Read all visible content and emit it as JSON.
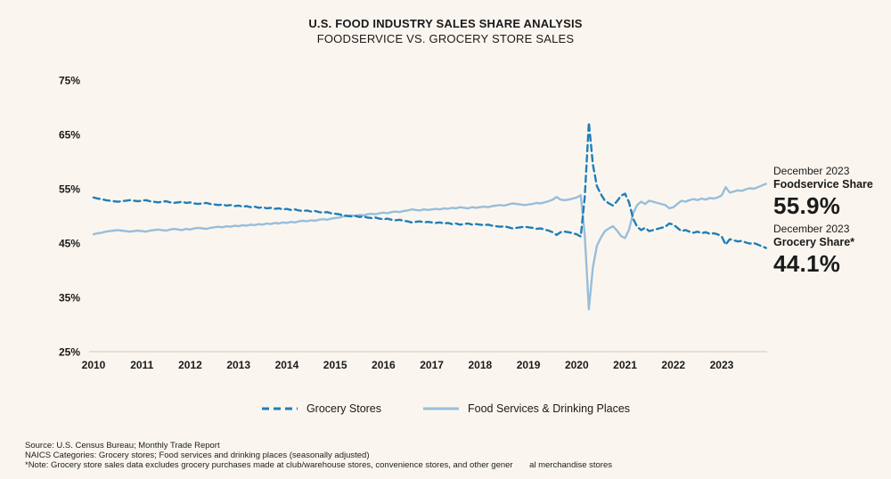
{
  "header": {
    "title": "U.S. FOOD INDUSTRY SALES SHARE ANALYSIS",
    "subtitle": "FOODSERVICE VS. GROCERY STORE SALES"
  },
  "chart_data": {
    "type": "line",
    "title": "U.S. Food Industry Sales Share Analysis",
    "x_unit": "monthly, Jan 2010 - Dec 2023",
    "x_tick_labels": [
      "2010",
      "2011",
      "2012",
      "2013",
      "2014",
      "2015",
      "2016",
      "2017",
      "2018",
      "2019",
      "2020",
      "2021",
      "2022",
      "2023"
    ],
    "y_tick_labels": [
      "25%",
      "35%",
      "45%",
      "55%",
      "65%",
      "75%"
    ],
    "ylim": [
      25,
      75
    ],
    "grid": false,
    "legend_position": "bottom",
    "series": [
      {
        "name": "Grocery Stores",
        "style": "dashed",
        "color": "#1f7fb8",
        "values": [
          53.4,
          53.2,
          53.1,
          52.9,
          52.8,
          52.7,
          52.6,
          52.7,
          52.8,
          52.9,
          52.8,
          52.7,
          52.8,
          52.9,
          52.7,
          52.6,
          52.5,
          52.6,
          52.7,
          52.5,
          52.4,
          52.5,
          52.6,
          52.4,
          52.5,
          52.3,
          52.2,
          52.3,
          52.4,
          52.2,
          52.1,
          52.0,
          52.1,
          51.9,
          52.0,
          51.8,
          51.9,
          51.7,
          51.8,
          51.6,
          51.7,
          51.5,
          51.6,
          51.4,
          51.5,
          51.3,
          51.4,
          51.2,
          51.3,
          51.1,
          51.2,
          51.0,
          50.9,
          51.0,
          50.8,
          50.9,
          50.7,
          50.6,
          50.7,
          50.5,
          50.4,
          50.3,
          50.1,
          50.0,
          49.9,
          50.0,
          49.8,
          49.9,
          49.7,
          49.6,
          49.7,
          49.5,
          49.4,
          49.5,
          49.3,
          49.2,
          49.3,
          49.1,
          49.0,
          48.8,
          48.9,
          49.0,
          48.8,
          48.9,
          48.8,
          48.7,
          48.8,
          48.6,
          48.7,
          48.5,
          48.6,
          48.4,
          48.5,
          48.6,
          48.4,
          48.5,
          48.4,
          48.3,
          48.4,
          48.2,
          48.1,
          48.0,
          48.1,
          47.9,
          47.7,
          47.8,
          47.9,
          48.0,
          47.9,
          47.8,
          47.6,
          47.7,
          47.5,
          47.3,
          47.0,
          46.5,
          47.0,
          47.1,
          47.0,
          46.8,
          46.6,
          46.2,
          53.5,
          67.2,
          59.5,
          55.5,
          54.0,
          52.8,
          52.3,
          51.9,
          52.7,
          53.7,
          54.1,
          52.5,
          49.5,
          48.0,
          47.4,
          47.8,
          47.2,
          47.4,
          47.6,
          47.8,
          48.0,
          48.6,
          48.4,
          47.8,
          47.2,
          47.4,
          47.1,
          46.9,
          47.1,
          46.8,
          47.0,
          46.7,
          46.8,
          46.6,
          46.2,
          44.7,
          45.7,
          45.5,
          45.3,
          45.4,
          45.1,
          44.9,
          45.0,
          44.7,
          44.4,
          44.1
        ]
      },
      {
        "name": "Food Services & Drinking Places",
        "style": "solid",
        "color": "#98bedb",
        "values": [
          46.6,
          46.8,
          46.9,
          47.1,
          47.2,
          47.3,
          47.4,
          47.3,
          47.2,
          47.1,
          47.2,
          47.3,
          47.2,
          47.1,
          47.3,
          47.4,
          47.5,
          47.4,
          47.3,
          47.5,
          47.6,
          47.5,
          47.4,
          47.6,
          47.5,
          47.7,
          47.8,
          47.7,
          47.6,
          47.8,
          47.9,
          48.0,
          47.9,
          48.1,
          48.0,
          48.2,
          48.1,
          48.3,
          48.2,
          48.4,
          48.3,
          48.5,
          48.4,
          48.6,
          48.5,
          48.7,
          48.6,
          48.8,
          48.7,
          48.9,
          48.8,
          49.0,
          49.1,
          49.0,
          49.2,
          49.1,
          49.3,
          49.4,
          49.3,
          49.5,
          49.6,
          49.7,
          49.9,
          50.0,
          50.1,
          50.0,
          50.2,
          50.1,
          50.3,
          50.4,
          50.3,
          50.5,
          50.6,
          50.5,
          50.7,
          50.8,
          50.7,
          50.9,
          51.0,
          51.2,
          51.1,
          51.0,
          51.2,
          51.1,
          51.2,
          51.3,
          51.2,
          51.4,
          51.3,
          51.5,
          51.4,
          51.6,
          51.5,
          51.4,
          51.6,
          51.5,
          51.6,
          51.7,
          51.6,
          51.8,
          51.9,
          52.0,
          51.9,
          52.1,
          52.3,
          52.2,
          52.1,
          52.0,
          52.1,
          52.2,
          52.4,
          52.3,
          52.5,
          52.7,
          53.0,
          53.5,
          53.0,
          52.9,
          53.0,
          53.2,
          53.4,
          53.8,
          46.5,
          32.8,
          40.5,
          44.5,
          46.0,
          47.2,
          47.7,
          48.1,
          47.3,
          46.3,
          45.9,
          47.5,
          50.5,
          52.0,
          52.6,
          52.2,
          52.8,
          52.6,
          52.4,
          52.2,
          52.0,
          51.4,
          51.6,
          52.2,
          52.8,
          52.6,
          52.9,
          53.1,
          52.9,
          53.2,
          53.0,
          53.3,
          53.2,
          53.4,
          53.8,
          55.3,
          54.3,
          54.5,
          54.7,
          54.6,
          54.9,
          55.1,
          55.0,
          55.3,
          55.6,
          55.9
        ]
      }
    ]
  },
  "annotations": {
    "foodservice": {
      "date": "December 2023",
      "name": "Foodservice Share",
      "value": "55.9%"
    },
    "grocery": {
      "date": "December 2023",
      "name": "Grocery Share*",
      "value": "44.1%"
    }
  },
  "footer": {
    "lines": [
      "Source: U.S. Census Bureau; Monthly Trade Report",
      "NAICS Categories: Grocery stores; Food services and drinking places (seasonally adjusted)",
      "*Note: Grocery store sales data excludes grocery purchases made at club/warehouse stores, convenience stores, and other gener       al merchandise stores"
    ]
  },
  "colors": {
    "background": "#faf6ef",
    "grocery": "#1f7fb8",
    "foodservice": "#98bedb",
    "axis_line": "#e3dfd7",
    "text": "#1a1a1a"
  }
}
